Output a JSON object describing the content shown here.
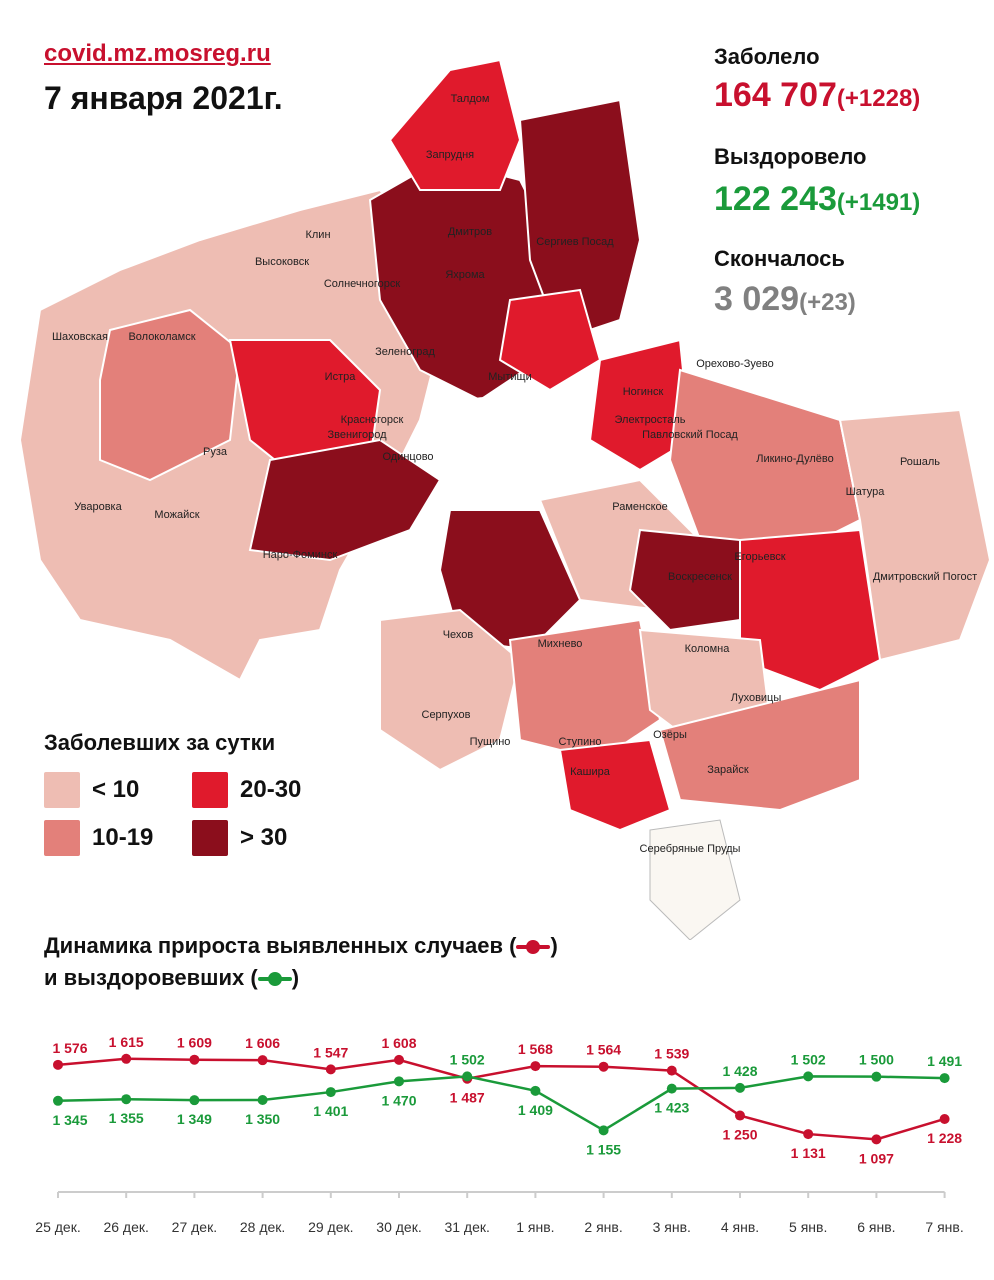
{
  "header": {
    "site": "covid.mz.mosreg.ru",
    "date": "7 января 2021г."
  },
  "stats": {
    "sick_label": "Заболело",
    "sick_value": "164 707",
    "sick_delta": "(+1228)",
    "recovered_label": "Выздоровело",
    "recovered_value": "122 243",
    "recovered_delta": "(+1491)",
    "died_label": "Скончалось",
    "died_value": "3 029",
    "died_delta": "(+23)"
  },
  "colors": {
    "red": "#c8102e",
    "green": "#1a9a3a",
    "gray": "#808080",
    "tier_lt10": "#eebdb3",
    "tier_10_19": "#e3807a",
    "tier_20_30": "#e01a2c",
    "tier_gt30": "#8b0e1c"
  },
  "legend": {
    "title": "Заболевших за сутки",
    "items": [
      {
        "label": "< 10",
        "color": "#eebdb3"
      },
      {
        "label": "20-30",
        "color": "#e01a2c"
      },
      {
        "label": "10-19",
        "color": "#e3807a"
      },
      {
        "label": "> 30",
        "color": "#8b0e1c"
      }
    ]
  },
  "map_labels": [
    "Талдом",
    "Запрудня",
    "Дмитров",
    "Сергиев Посад",
    "Яхрома",
    "Клин",
    "Высоковск",
    "Солнечногорск",
    "Волоколамск",
    "Шаховская",
    "Зеленоград",
    "Истра",
    "Мытищи",
    "Красногорск",
    "Звенигород",
    "Одинцово",
    "Руза",
    "Ногинск",
    "Электросталь",
    "Орехово-Зуево",
    "Павловский Посад",
    "Ликино-Дулёво",
    "Рошаль",
    "Шатура",
    "Уваровка",
    "Можайск",
    "Наро-Фоминск",
    "Раменское",
    "Егорьевск",
    "Дмитровский Погост",
    "Воскресенск",
    "Чехов",
    "Михнево",
    "Коломна",
    "Луховицы",
    "Серпухов",
    "Пущино",
    "Ступино",
    "Озёры",
    "Кашира",
    "Зарайск",
    "Серебряные Пруды"
  ],
  "dynamics": {
    "title_line1": "Динамика прироста выявленных случаев (",
    "title_line1_end": ")",
    "title_line2": "и выздоровевших (",
    "title_line2_end": ")"
  },
  "chart_data": {
    "type": "line",
    "title": "Динамика прироста выявленных случаев и выздоровевших",
    "x": [
      "25 дек.",
      "26 дек.",
      "27 дек.",
      "28 дек.",
      "29 дек.",
      "30 дек.",
      "31 дек.",
      "1 янв.",
      "2 янв.",
      "3 янв.",
      "4 янв.",
      "5 янв.",
      "6 янв.",
      "7 янв."
    ],
    "x_labels": [
      "25 дек.",
      "26 дек.",
      "27 дек.",
      "28 дек.",
      "29 дек.",
      "30 дек.",
      "31 дек.",
      "1 янв.",
      "2 янв.",
      "3 янв.",
      "4 янв.",
      "5 янв.",
      "6 янв.",
      "7 янв."
    ],
    "series": [
      {
        "color": "#c8102e",
        "values": [
          1576,
          1615,
          1609,
          1606,
          1547,
          1608,
          1487,
          1568,
          1564,
          1539,
          1250,
          1131,
          1097,
          1228
        ],
        "labels": [
          "1 576",
          "1 615",
          "1 609",
          "1 606",
          "1 547",
          "1 608",
          "1 487",
          "1 568",
          "1 564",
          "1 539",
          "1 250",
          "1 131",
          "1 097",
          "1 228"
        ]
      },
      {
        "color": "#1a9a3a",
        "values": [
          1345,
          1355,
          1349,
          1350,
          1401,
          1470,
          1502,
          1409,
          1155,
          1423,
          1428,
          1502,
          1500,
          1491
        ],
        "labels": [
          "1 345",
          "1 355",
          "1 349",
          "1 350",
          "1 401",
          "1 470",
          "1 502",
          "1 409",
          "1 155",
          "1 423",
          "1 428",
          "1 502",
          "1 500",
          "1 491"
        ]
      }
    ],
    "ylim": [
      900,
      1800
    ],
    "grid": false,
    "legend": "none"
  }
}
